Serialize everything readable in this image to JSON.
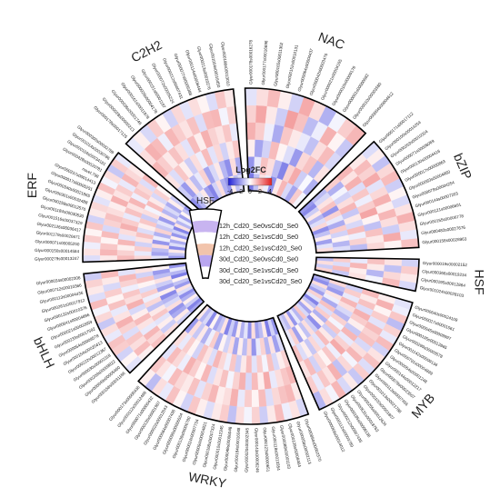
{
  "chart_data": {
    "type": "heatmap",
    "layout": "circular",
    "title": "",
    "legend": {
      "title": "Log2FC",
      "ticks": [
        "-4",
        "-2",
        "0",
        "2",
        "4"
      ],
      "range": [
        -4,
        4
      ],
      "colors": {
        "low": "#1f1fd6",
        "mid": "#ffffff",
        "high": "#e32020"
      }
    },
    "rings": [
      "12h_Cd20_Se0vsCd0_Se0",
      "12h_Cd20_Se1vsCd0_Se0",
      "12h_Cd20_Se1vsCd20_Se0",
      "30d_Cd20_Se0vsCd0_Se0",
      "30d_Cd20_Se1vsCd0_Se0",
      "30d_Cd20_Se1vsCd20_Se0"
    ],
    "families": [
      {
        "name": "NAC",
        "genes": [
          "Glyur000178s00016278",
          "Glyur000177s00016696",
          "Glyur000165s00011362",
          "Glyur000152s00010131",
          "Glyur000064s00004437",
          "Glyur000042s00003476",
          "Glyur000021s00004165",
          "Glyur000010s00009176",
          "Glyur000001s00000682",
          "Glyur000010s00003580",
          "Glyur000004s00004612"
        ]
      },
      {
        "name": "bZIP",
        "genes": [
          "Glyur000171s00017112",
          "Glyur000100s00014254",
          "Glyur000203s00010324",
          "Glyur000071s00006069",
          "Glyur000130s00004416",
          "Glyur000017s00000863",
          "Glyur000063s00004860",
          "Glyur000079s00004254",
          "Glyur000144s00007203",
          "Glyur000121s00006691",
          "Glyur000155s00006778",
          "Glyur000483s00027676",
          "Glyur000158s00028963"
        ]
      },
      {
        "name": "HSF",
        "genes": [
          "Glyur000019s00002152",
          "Glyur000366s00019234",
          "Glyur000195s00012864",
          "Glyur001024s00028103"
        ]
      },
      {
        "name": "MYB",
        "genes": [
          "Glyur000640s00024109",
          "Glyur000027s00001561",
          "Glyur000045s00009997",
          "Glyur000195s00012865",
          "Glyur000299s00003578",
          "Glyur001142s00009134",
          "Glyur000791s00004899",
          "Glyur000054s00001248",
          "Glyur000144s00012217",
          "Glyur000078s00023507",
          "Glyur000113s00007456",
          "Glyur001013s00021788",
          "Glyur000100s00001807",
          "Glyur000255s00012634",
          "Glyur000531s00018763",
          "Glyur000185s00009136",
          "Glyur000212s00007435",
          "Glyur000112s00003789",
          "Glyur000069s00014012"
        ]
      },
      {
        "name": "WRKY",
        "genes": [
          "Glyur000894s00002370",
          "Glyur000058s00002113",
          "Glyur000128s00008464",
          "Glyur000088s00001103",
          "Glyur000118s00013354",
          "Glyur000123s00000651",
          "Glyur000143s00006246",
          "Glyur000020s00002345",
          "Glyur000184s00016048",
          "Glyur000048s00006048",
          "Glyur000010s00012345",
          "Glyur000168s00007324",
          "Glyur000094s00004821",
          "Glyur000024s00007734",
          "Glyur000138s00006780",
          "Glyur000098s00006564",
          "Glyur000064s00007436",
          "Glyur000022s00012643",
          "Glyur000135s00001987",
          "Glyur000071s00000432",
          "Glyur000112s00012468",
          "Glyur000173s00008436"
        ]
      },
      {
        "name": "bHLH",
        "genes": [
          "Glyur000158s00031186",
          "Glyur000049s00005460",
          "Glyur000209s00009822",
          "Glyur000030s00002318",
          "Glyur000222s00012367",
          "Glyur000154s00020413",
          "Glyur000054s00009578",
          "Glyur000233s00017592",
          "Glyur000021s00002659",
          "Glyur000641s00004896",
          "Glyur000132s00010376",
          "Glyur000261s00017912",
          "Glyur000113s00004436",
          "Glyur000712s00010366",
          "Glyur000034s00002306"
        ]
      },
      {
        "name": "ERF",
        "genes": [
          "Glyur000279s00013247",
          "Glyur000150s00014584",
          "Glyur000071s00005250",
          "Glyur001179s00026671",
          "Glyur002126s00036417",
          "Glyur001516s00037329",
          "Glyur001184s00030530",
          "Glyur000258s00012570",
          "Glyur000301s00032488",
          "Glyur000340s00021865",
          "Glyur000017s00005251",
          "Glyur000237s00014413",
          "novel.798",
          "Glyur000428s00020781",
          "Glyur000104s00034181",
          "Glyur001014s00030786",
          "Glyur000300s00032789"
        ]
      },
      {
        "name": "C2H2",
        "genes": [
          "Glyur000178s00017125",
          "Glyur000028s00000213",
          "Glyur000036s00001746",
          "Glyur000161s00011978",
          "Glyur000029s00004178",
          "Glyur000151s00001187",
          "Glyur000072s00005224",
          "Glyur000212s00007431",
          "Glyur000077s00006388",
          "Glyur000114s00006444",
          "Glyur000213s00010276",
          "Glyur001004s00016450",
          "Glyur000186s00013010"
        ]
      }
    ],
    "values": {
      "NAC": [
        [
          -2.4,
          -1.1,
          0.5,
          -0.3,
          -2.0,
          0.4,
          1.3,
          -0.7,
          -1.6,
          0.9,
          -0.2
        ],
        [
          -1.9,
          -0.4,
          1.1,
          0.6,
          -1.2,
          -2.2,
          0.8,
          1.5,
          -0.9,
          -0.1,
          -1.4
        ],
        [
          0.3,
          -1.6,
          -0.8,
          1.2,
          0.2,
          -0.6,
          -1.8,
          0.7,
          1.1,
          -1.3,
          0.5
        ],
        [
          1.4,
          0.9,
          -0.3,
          -1.5,
          1.0,
          0.4,
          -0.4,
          -1.1,
          0.6,
          1.2,
          -0.7
        ],
        [
          0.8,
          1.6,
          0.4,
          -0.9,
          1.7,
          1.1,
          -1.2,
          -0.3,
          1.4,
          0.2,
          -1.0
        ],
        [
          -0.5,
          0.6,
          1.2,
          0.3,
          -0.8,
          1.5,
          0.6,
          -1.4,
          -0.2,
          0.9,
          1.3
        ]
      ],
      "bZIP": [
        [
          -1.8,
          -2.1,
          -0.9,
          0.4,
          -1.3,
          -0.6,
          0.7,
          -2.0,
          -1.1,
          0.3,
          -1.7,
          -0.5,
          0.6
        ],
        [
          -1.2,
          -0.7,
          0.5,
          1.1,
          -1.9,
          0.8,
          -0.4,
          -1.5,
          0.9,
          -0.8,
          0.2,
          -1.3,
          -0.6
        ],
        [
          0.9,
          -1.4,
          -0.2,
          -0.8,
          0.6,
          1.3,
          -1.0,
          0.4,
          -0.7,
          1.2,
          -0.3,
          0.8,
          -1.2
        ],
        [
          1.3,
          0.5,
          1.4,
          -0.6,
          1.0,
          -0.3,
          0.9,
          1.6,
          0.2,
          -1.1,
          1.1,
          0.4,
          0.7
        ],
        [
          0.4,
          1.2,
          0.8,
          1.5,
          -0.5,
          0.7,
          1.4,
          0.3,
          1.3,
          0.6,
          -0.9,
          1.5,
          0.2
        ],
        [
          -0.6,
          0.3,
          -1.1,
          0.7,
          1.2,
          -0.9,
          0.2,
          -0.7,
          0.5,
          1.4,
          0.6,
          -0.4,
          1.1
        ]
      ],
      "HSF": [
        [
          -1.2,
          0.6,
          -0.9,
          0.8
        ],
        [
          0.9,
          -0.6,
          1.2,
          -1.0
        ],
        [
          -0.4,
          1.3,
          0.3,
          0.5
        ],
        [
          1.1,
          0.4,
          -1.3,
          -0.2
        ],
        [
          0.5,
          -1.1,
          0.7,
          1.2
        ],
        [
          -0.8,
          0.9,
          0.4,
          -0.7
        ]
      ],
      "MYB": [
        [
          -1.4,
          -2.0,
          0.6,
          -0.9,
          -1.7,
          0.8,
          -0.5,
          -2.2,
          -1.1,
          0.4,
          -1.6,
          -0.7,
          1.0,
          -1.3,
          -0.4,
          -1.9,
          0.5,
          -1.2,
          -0.8
        ],
        [
          0.7,
          -1.2,
          -1.8,
          0.5,
          -0.3,
          -1.5,
          1.1,
          -0.6,
          0.9,
          -1.4,
          0.3,
          -2.0,
          -0.9,
          0.6,
          -1.1,
          0.2,
          -1.7,
          0.8,
          -0.4
        ],
        [
          -0.8,
          0.9,
          -0.4,
          1.3,
          0.6,
          -0.7,
          -1.3,
          0.8,
          -0.2,
          1.0,
          -0.9,
          0.4,
          1.2,
          -0.5,
          0.7,
          -1.0,
          0.3,
          -0.6,
          1.1
        ],
        [
          1.2,
          0.4,
          1.1,
          -0.6,
          1.4,
          0.9,
          0.3,
          -1.0,
          1.3,
          -0.4,
          0.8,
          1.5,
          -0.3,
          1.0,
          0.2,
          0.7,
          -0.8,
          1.2,
          0.5
        ],
        [
          0.3,
          1.4,
          0.2,
          0.9,
          -0.5,
          1.2,
          0.8,
          1.1,
          -0.7,
          0.6,
          1.3,
          -0.2,
          0.7,
          -1.1,
          1.4,
          0.5,
          1.0,
          -0.4,
          0.9
        ],
        [
          -0.5,
          -0.3,
          1.0,
          -1.2,
          0.8,
          -0.4,
          1.2,
          -0.8,
          0.5,
          1.1,
          -0.6,
          0.9,
          -1.0,
          0.4,
          -0.7,
          1.3,
          -0.2,
          0.6,
          -1.3
        ]
      ],
      "WRKY": [
        [
          -1.9,
          -0.8,
          -2.3,
          0.4,
          -1.2,
          -1.7,
          0.6,
          -2.0,
          -0.5,
          -1.4,
          0.3,
          -1.8,
          -0.9,
          -2.2,
          0.5,
          -1.1,
          -1.6,
          0.2,
          -2.1,
          -0.7,
          -1.3,
          0.4
        ],
        [
          -0.6,
          -1.7,
          0.5,
          -1.3,
          0.8,
          -0.4,
          -1.9,
          0.7,
          -1.2,
          0.3,
          -1.6,
          0.6,
          -0.8,
          0.2,
          -1.5,
          0.9,
          -0.3,
          -1.4,
          0.4,
          -1.0,
          0.6,
          -1.8
        ],
        [
          0.8,
          0.3,
          -0.7,
          1.1,
          -0.2,
          0.9,
          -0.5,
          1.2,
          0.4,
          -0.9,
          1.0,
          -0.3,
          0.7,
          1.3,
          -0.6,
          0.5,
          1.1,
          -0.8,
          0.2,
          0.9,
          -0.4,
          0.6
        ],
        [
          1.3,
          1.0,
          0.6,
          -0.4,
          1.5,
          0.3,
          1.2,
          -0.7,
          1.4,
          0.8,
          -0.2,
          1.1,
          0.5,
          -0.6,
          1.3,
          0.2,
          0.9,
          1.4,
          -0.3,
          0.7,
          1.2,
          -0.5
        ],
        [
          0.4,
          1.3,
          1.1,
          0.7,
          -0.6,
          1.2,
          0.2,
          0.9,
          -0.4,
          1.4,
          0.6,
          0.3,
          1.3,
          0.8,
          -0.5,
          1.1,
          0.4,
          0.7,
          1.2,
          -0.2,
          0.5,
          1.0
        ],
        [
          -0.7,
          0.5,
          -0.3,
          1.2,
          0.4,
          -0.9,
          0.8,
          -0.2,
          0.6,
          -1.1,
          0.9,
          0.4,
          -0.6,
          0.3,
          1.0,
          -0.8,
          0.2,
          1.1,
          -0.4,
          0.6,
          -1.2,
          0.3
        ]
      ],
      "bHLH": [
        [
          -1.6,
          -2.2,
          -0.9,
          0.3,
          -1.4,
          -2.0,
          -0.6,
          0.5,
          -1.8,
          -1.1,
          0.2,
          -2.3,
          -1.3,
          -0.4,
          -1.9
        ],
        [
          -0.8,
          0.4,
          -1.5,
          -1.9,
          0.6,
          -0.7,
          -1.3,
          -2.1,
          0.3,
          -1.6,
          -0.9,
          0.5,
          -1.2,
          -1.8,
          0.2
        ],
        [
          0.6,
          -0.9,
          0.3,
          -0.5,
          1.0,
          0.4,
          -1.1,
          0.7,
          -0.3,
          0.9,
          -0.6,
          0.2,
          1.1,
          -0.8,
          0.5
        ],
        [
          1.1,
          0.7,
          1.3,
          -0.4,
          0.5,
          1.2,
          0.3,
          -0.7,
          1.4,
          0.6,
          1.0,
          -0.3,
          0.8,
          1.3,
          -0.5
        ],
        [
          0.3,
          1.2,
          0.6,
          1.0,
          -0.6,
          0.8,
          1.4,
          0.5,
          -0.4,
          1.1,
          0.2,
          0.9,
          -0.7,
          0.4,
          1.2
        ],
        [
          -0.5,
          0.2,
          -0.8,
          0.9,
          1.1,
          -0.4,
          0.6,
          -1.0,
          0.7,
          -0.2,
          1.2,
          -0.6,
          0.4,
          0.8,
          -0.9
        ]
      ],
      "ERF": [
        [
          -1.8,
          -1.0,
          0.4,
          -2.1,
          -0.6,
          -1.5,
          0.3,
          -1.9,
          -0.8,
          -2.2,
          0.5,
          -1.3,
          -0.4,
          -1.7,
          0.2,
          -1.1,
          -2.0
        ],
        [
          -0.5,
          -1.6,
          -1.2,
          0.6,
          -1.9,
          -0.3,
          -1.4,
          0.8,
          -1.0,
          -0.5,
          -1.8,
          0.4,
          -1.3,
          -0.7,
          -1.5,
          0.3,
          -0.9
        ],
        [
          0.7,
          -0.4,
          0.9,
          -0.8,
          0.5,
          1.1,
          -0.6,
          0.3,
          1.0,
          -0.9,
          0.6,
          -0.2,
          1.2,
          0.4,
          -0.7,
          0.8,
          0.2
        ],
        [
          1.2,
          0.8,
          0.3,
          1.3,
          -0.5,
          0.6,
          1.4,
          0.9,
          -0.4,
          1.1,
          0.5,
          1.3,
          -0.3,
          1.0,
          0.7,
          -0.6,
          1.2
        ],
        [
          0.4,
          1.3,
          1.0,
          0.2,
          1.2,
          -0.7,
          0.8,
          1.1,
          0.6,
          0.3,
          1.4,
          0.5,
          0.9,
          -0.4,
          1.3,
          0.7,
          0.4
        ],
        [
          -0.6,
          0.5,
          -0.3,
          0.9,
          0.2,
          1.0,
          -0.8,
          0.4,
          0.7,
          -0.5,
          0.3,
          1.1,
          -0.2,
          0.6,
          -1.0,
          0.9,
          -0.4
        ]
      ],
      "C2H2": [
        [
          -2.0,
          -1.3,
          -0.5,
          0.4,
          -1.7,
          -2.2,
          -0.8,
          0.6,
          -1.4,
          -1.9,
          0.3,
          -1.1,
          -0.6
        ],
        [
          -0.9,
          -1.8,
          0.5,
          -1.2,
          -0.4,
          0.8,
          -1.6,
          -0.7,
          0.4,
          -1.3,
          -2.0,
          0.6,
          -1.5
        ],
        [
          0.5,
          -0.6,
          1.0,
          0.3,
          -0.9,
          0.6,
          -0.3,
          1.2,
          -0.5,
          0.7,
          -0.8,
          0.4,
          1.0
        ],
        [
          1.3,
          0.9,
          0.4,
          1.1,
          0.6,
          -0.5,
          1.2,
          0.3,
          1.4,
          0.8,
          0.5,
          1.0,
          -0.4
        ],
        [
          0.6,
          1.4,
          1.2,
          -0.3,
          1.3,
          0.9,
          0.5,
          1.1,
          -0.6,
          1.2,
          1.3,
          -0.2,
          0.8
        ],
        [
          -0.4,
          0.3,
          -0.7,
          0.9,
          0.2,
          -0.8,
          0.7,
          -0.5,
          0.6,
          0.2,
          -0.6,
          1.0,
          0.4
        ]
      ]
    }
  }
}
